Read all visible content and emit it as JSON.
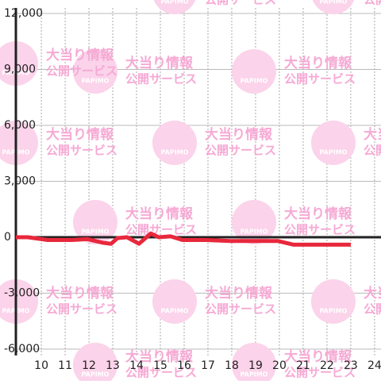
{
  "chart_data": {
    "type": "line",
    "x": [
      8.93,
      9.43,
      10.27,
      11.27,
      11.93,
      12.6,
      12.93,
      13.2,
      13.6,
      14.1,
      14.6,
      14.93,
      15.43,
      15.93,
      16.93,
      17.93,
      19.93,
      20.6,
      23.0
    ],
    "series": [
      {
        "color": "#e8283c",
        "values": [
          0,
          0,
          -150,
          -150,
          -100,
          -300,
          -350,
          -50,
          0,
          -350,
          200,
          0,
          50,
          -150,
          -150,
          -200,
          -200,
          -400,
          -400
        ]
      }
    ],
    "xlim": [
      8.93,
      24.27
    ],
    "xticks": [
      10,
      11,
      12,
      13,
      14,
      15,
      16,
      17,
      18,
      19,
      20,
      21,
      22,
      23,
      24
    ],
    "ylim": [
      -6000,
      12000
    ],
    "yticks": [
      {
        "value": -6000,
        "label": "-6,000"
      },
      {
        "value": -3000,
        "label": "-3,000"
      },
      0,
      {
        "value": 3000,
        "label": "3,000"
      },
      {
        "value": 6000,
        "label": "6,000"
      },
      {
        "value": 9000,
        "label": "9,000"
      },
      {
        "value": 12000,
        "label": "12,000"
      }
    ],
    "grid": true
  },
  "watermark": {
    "brand": "PAPIMO",
    "line1": "大当り情報",
    "line2": "公開サービス"
  }
}
